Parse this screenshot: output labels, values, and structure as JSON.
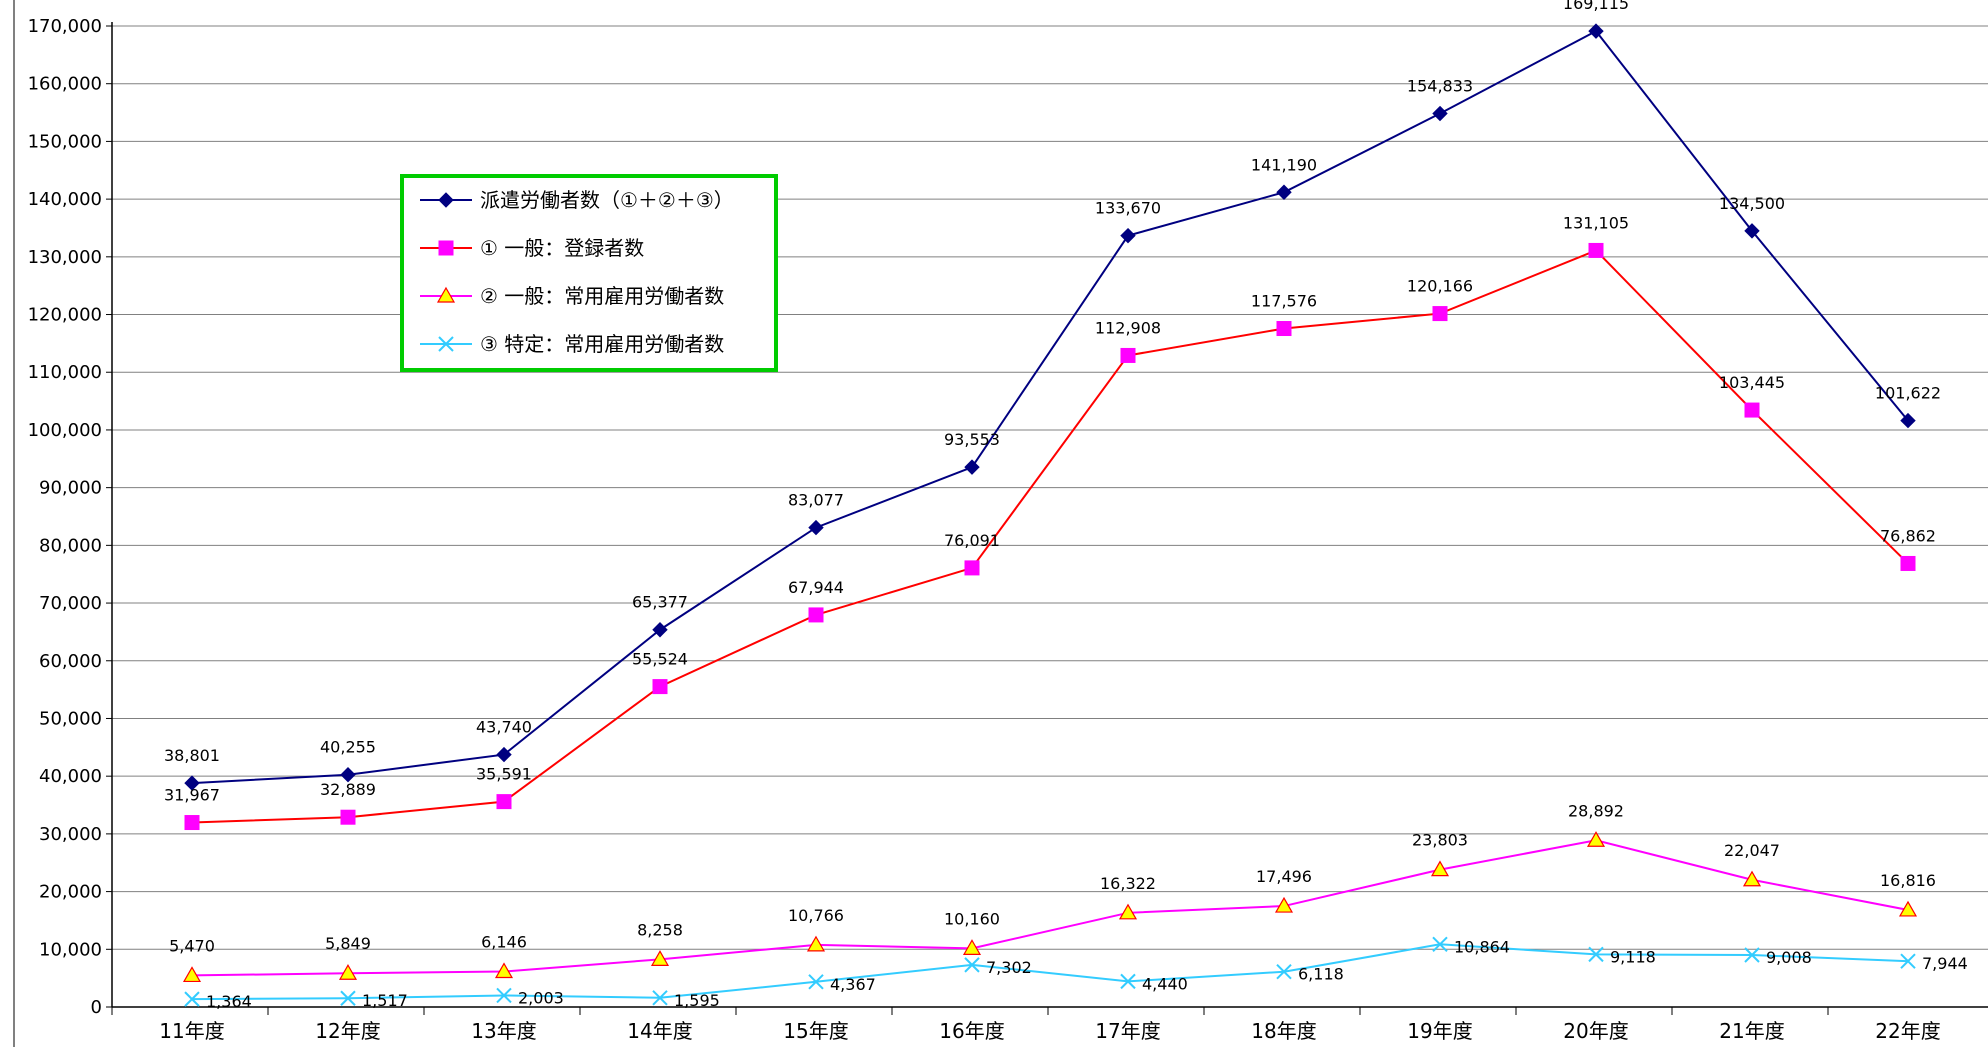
{
  "chart_data": {
    "type": "line",
    "categories": [
      "11年度",
      "12年度",
      "13年度",
      "14年度",
      "15年度",
      "16年度",
      "17年度",
      "18年度",
      "19年度",
      "20年度",
      "21年度",
      "22年度"
    ],
    "ylim": [
      0,
      170000
    ],
    "ytick_step": 10000,
    "grid": true,
    "legend_position": "upper-left inside plot",
    "series": [
      {
        "name": "派遣労働者数（①＋②＋③）",
        "color": "#000080",
        "marker": "diamond",
        "values": [
          38801,
          40255,
          43740,
          65377,
          83077,
          93553,
          133670,
          141190,
          154833,
          169115,
          134500,
          101622
        ]
      },
      {
        "name": "① 一般：登録者数",
        "color": "#ff0000",
        "marker": "square",
        "marker_color": "#ff00ff",
        "values": [
          31967,
          32889,
          35591,
          55524,
          67944,
          76091,
          112908,
          117576,
          120166,
          131105,
          103445,
          76862
        ]
      },
      {
        "name": "② 一般：常用雇用労働者数",
        "color": "#ff00ff",
        "marker": "triangle",
        "marker_color": "#ffff00",
        "values": [
          5470,
          5849,
          6146,
          8258,
          10766,
          10160,
          16322,
          17496,
          23803,
          28892,
          22047,
          16816
        ]
      },
      {
        "name": "③ 特定：常用雇用労働者数",
        "color": "#33ccff",
        "marker": "x",
        "values": [
          1364,
          1517,
          2003,
          1595,
          4367,
          7302,
          4440,
          6118,
          10864,
          9118,
          9008,
          7944
        ]
      }
    ],
    "legend_border_color": "#00cc00"
  }
}
